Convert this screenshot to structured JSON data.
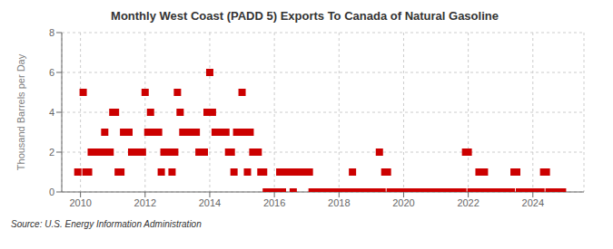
{
  "chart_data": {
    "type": "scatter",
    "title": "Monthly West Coast (PADD 5) Exports To Canada of Natural Gasoline",
    "ylabel": "Thousand Barrels per Day",
    "source": "Source: U.S. Energy Information Administration",
    "color": "#cc0000",
    "marker": "square",
    "grid": true,
    "xlim": [
      2009.42,
      2025.58
    ],
    "xticks": [
      2010,
      2012,
      2014,
      2016,
      2018,
      2020,
      2022,
      2024
    ],
    "ylim": [
      0,
      8
    ],
    "yticks": [
      0,
      2,
      4,
      6,
      8
    ],
    "x": [
      2009.917,
      2010.083,
      2010.167,
      2010.25,
      2010.333,
      2010.417,
      2010.5,
      2010.583,
      2010.667,
      2010.75,
      2010.833,
      2010.917,
      2011.0,
      2011.083,
      2011.167,
      2011.25,
      2011.333,
      2011.417,
      2011.5,
      2011.583,
      2011.667,
      2011.75,
      2011.833,
      2011.917,
      2012.0,
      2012.083,
      2012.167,
      2012.25,
      2012.333,
      2012.417,
      2012.5,
      2012.583,
      2012.667,
      2012.75,
      2012.833,
      2012.917,
      2013.0,
      2013.083,
      2013.167,
      2013.25,
      2013.333,
      2013.417,
      2013.5,
      2013.583,
      2013.667,
      2013.75,
      2013.833,
      2013.917,
      2014.0,
      2014.083,
      2014.167,
      2014.25,
      2014.333,
      2014.417,
      2014.5,
      2014.583,
      2014.667,
      2014.75,
      2014.833,
      2014.917,
      2015.0,
      2015.083,
      2015.167,
      2015.25,
      2015.333,
      2015.417,
      2015.5,
      2015.583,
      2015.667,
      2015.75,
      2015.833,
      2015.917,
      2016.0,
      2016.083,
      2016.167,
      2016.25,
      2016.333,
      2016.417,
      2016.5,
      2016.583,
      2016.667,
      2016.75,
      2016.833,
      2016.917,
      2017.0,
      2017.083,
      2017.167,
      2017.25,
      2017.333,
      2017.417,
      2017.5,
      2017.583,
      2017.667,
      2017.75,
      2017.833,
      2017.917,
      2018.0,
      2018.083,
      2018.167,
      2018.25,
      2018.333,
      2018.417,
      2018.5,
      2018.583,
      2018.667,
      2018.75,
      2018.833,
      2018.917,
      2019.0,
      2019.083,
      2019.167,
      2019.25,
      2019.333,
      2019.417,
      2019.5,
      2019.583,
      2019.667,
      2019.75,
      2019.833,
      2019.917,
      2020.0,
      2020.083,
      2020.167,
      2020.25,
      2020.333,
      2020.417,
      2020.5,
      2020.583,
      2020.667,
      2020.75,
      2020.833,
      2020.917,
      2021.0,
      2021.083,
      2021.167,
      2021.25,
      2021.333,
      2021.417,
      2021.5,
      2021.583,
      2021.667,
      2021.75,
      2021.833,
      2021.917,
      2022.0,
      2022.083,
      2022.167,
      2022.25,
      2022.333,
      2022.417,
      2022.5,
      2022.583,
      2022.667,
      2022.75,
      2022.833,
      2022.917,
      2023.0,
      2023.083,
      2023.167,
      2023.25,
      2023.333,
      2023.417,
      2023.5,
      2023.583,
      2023.667,
      2023.75,
      2023.833,
      2023.917,
      2024.0,
      2024.083,
      2024.167,
      2024.25,
      2024.333,
      2024.417,
      2024.5,
      2024.583,
      2024.667,
      2024.75,
      2024.833,
      2024.917
    ],
    "values": [
      1,
      5,
      1,
      1,
      2,
      2,
      2,
      2,
      2,
      3,
      2,
      2,
      4,
      4,
      1,
      1,
      3,
      3,
      3,
      2,
      2,
      2,
      2,
      2,
      5,
      3,
      4,
      3,
      3,
      3,
      1,
      2,
      2,
      2,
      1,
      2,
      5,
      4,
      3,
      3,
      3,
      3,
      3,
      3,
      2,
      2,
      2,
      4,
      6,
      4,
      3,
      3,
      3,
      3,
      3,
      2,
      2,
      1,
      3,
      3,
      5,
      3,
      1,
      3,
      2,
      2,
      2,
      1,
      1,
      0,
      0,
      0,
      0,
      0,
      1,
      0,
      1,
      1,
      1,
      0,
      1,
      1,
      1,
      1,
      1,
      1,
      0,
      0,
      0,
      0,
      0,
      0,
      0,
      0,
      0,
      0,
      0,
      0,
      0,
      0,
      0,
      1,
      0,
      0,
      0,
      0,
      0,
      0,
      0,
      0,
      0,
      2,
      0,
      1,
      1,
      0,
      0,
      0,
      0,
      0,
      0,
      0,
      0,
      0,
      0,
      0,
      0,
      0,
      0,
      0,
      0,
      0,
      0,
      0,
      0,
      0,
      0,
      0,
      0,
      0,
      0,
      0,
      0,
      2,
      2,
      0,
      0,
      0,
      1,
      0,
      1,
      0,
      0,
      0,
      0,
      0,
      0,
      0,
      0,
      0,
      0,
      1,
      1,
      0,
      0,
      0,
      0,
      0,
      0,
      0,
      0,
      0,
      1,
      1,
      0,
      0,
      0,
      0,
      0,
      0
    ]
  }
}
